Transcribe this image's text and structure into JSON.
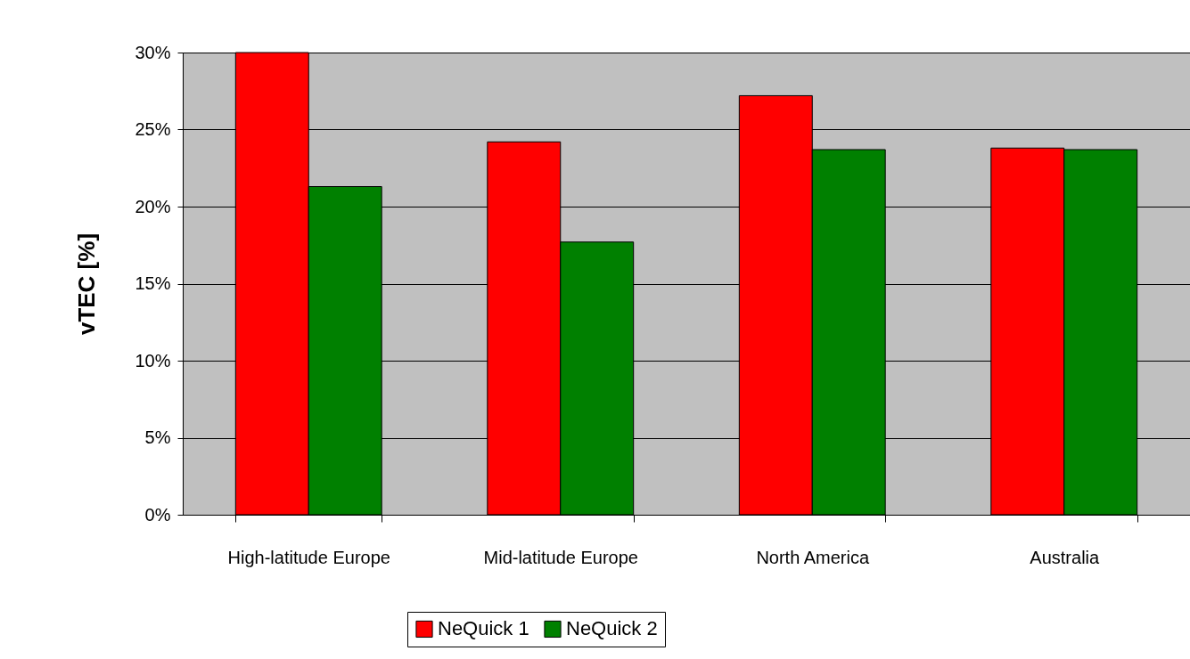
{
  "chart_data": {
    "type": "bar",
    "ylabel": "vTEC [%]",
    "categories": [
      "High-latitude Europe",
      "Mid-latitude Europe",
      "North America",
      "Australia"
    ],
    "series": [
      {
        "name": "NeQuick 1",
        "color": "#ff0000",
        "values": [
          30,
          24.2,
          27.2,
          23.8
        ]
      },
      {
        "name": "NeQuick 2",
        "color": "#008000",
        "values": [
          21.3,
          17.7,
          23.7,
          23.7
        ]
      }
    ],
    "ylim": [
      0,
      30
    ],
    "yticks": [
      {
        "value": 0,
        "label": "0%"
      },
      {
        "value": 5,
        "label": "5%"
      },
      {
        "value": 10,
        "label": "10%"
      },
      {
        "value": 15,
        "label": "15%"
      },
      {
        "value": 20,
        "label": "20%"
      },
      {
        "value": 25,
        "label": "25%"
      },
      {
        "value": 30,
        "label": "30%"
      }
    ],
    "grid": "y",
    "legend": "bottom"
  }
}
